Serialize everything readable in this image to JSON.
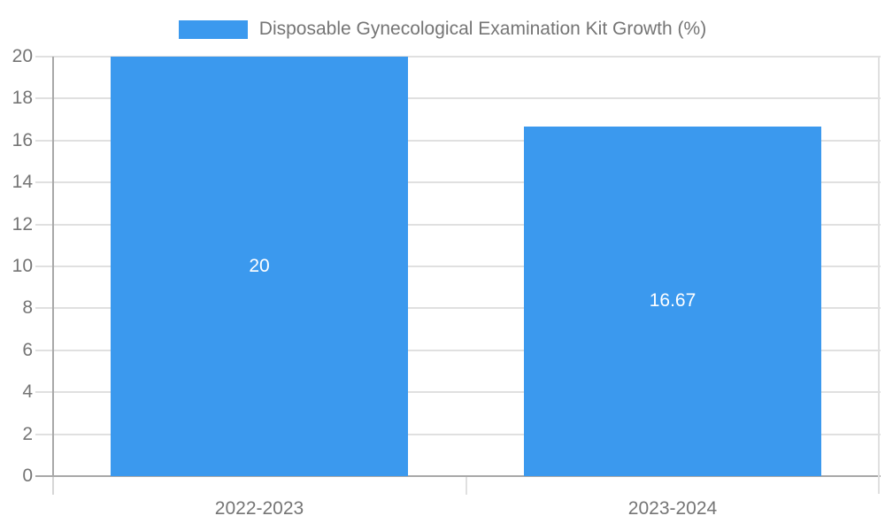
{
  "chart_data": {
    "type": "bar",
    "title": "",
    "legend": {
      "label": "Disposable Gynecological Examination Kit Growth (%)",
      "position": "top"
    },
    "categories": [
      "2022-2023",
      "2023-2024"
    ],
    "series": [
      {
        "name": "Disposable Gynecological Examination Kit Growth (%)",
        "values": [
          20,
          16.67
        ],
        "value_labels": [
          "20",
          "16.67"
        ]
      }
    ],
    "xlabel": "",
    "ylabel": "",
    "ylim": [
      0,
      20
    ],
    "yticks": [
      0,
      2,
      4,
      6,
      8,
      10,
      12,
      14,
      16,
      18,
      20
    ],
    "ytick_labels": [
      "0",
      "2",
      "4",
      "6",
      "8",
      "10",
      "12",
      "14",
      "16",
      "18",
      "20"
    ],
    "grid": true,
    "legend_position": "top-center",
    "colors": {
      "bar": "#3B99EE",
      "grid": "#e0e0e0",
      "axis": "#a8a8a8",
      "bottom_tick": "#d6d6d6",
      "text": "#757575",
      "value_label": "#ffffff",
      "background": "#ffffff"
    }
  }
}
